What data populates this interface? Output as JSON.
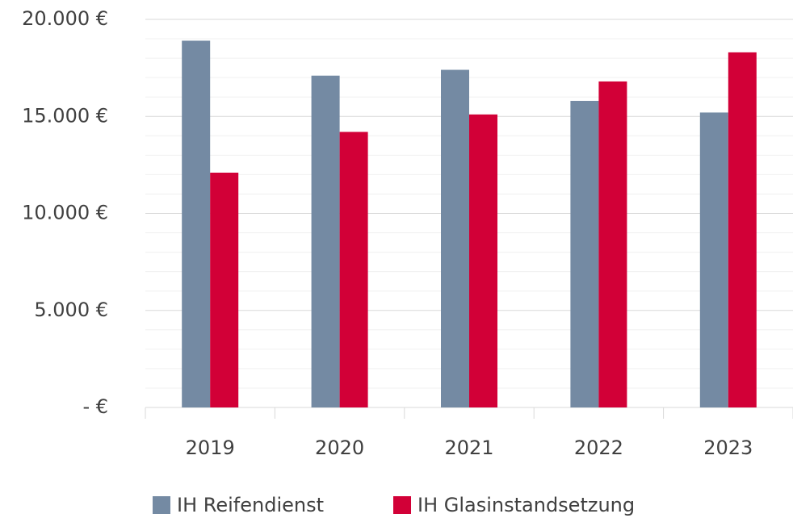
{
  "chart_data": {
    "type": "bar",
    "categories": [
      "2019",
      "2020",
      "2021",
      "2022",
      "2023"
    ],
    "series": [
      {
        "name": "IH Reifendienst",
        "color": "#748aa3",
        "values": [
          18900,
          17100,
          17400,
          15800,
          15200
        ]
      },
      {
        "name": "IH Glasinstandsetzung",
        "color": "#d20037",
        "values": [
          12100,
          14200,
          15100,
          16800,
          18300
        ]
      }
    ],
    "ylim": [
      0,
      20000
    ],
    "yticks": [
      {
        "value": 0,
        "label": "- €"
      },
      {
        "value": 5000,
        "label": "5.000 €"
      },
      {
        "value": 10000,
        "label": "10.000 €"
      },
      {
        "value": 15000,
        "label": "15.000 €"
      },
      {
        "value": 20000,
        "label": "20.000 €"
      }
    ],
    "grid": true,
    "legend": "bottom"
  }
}
